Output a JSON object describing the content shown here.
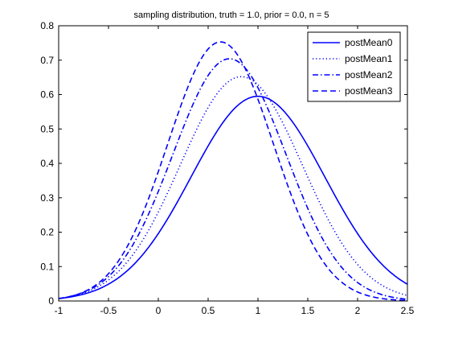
{
  "chart_data": {
    "type": "line",
    "title": "sampling distribution, truth = 1.0, prior = 0.0, n = 5",
    "xlabel": "",
    "ylabel": "",
    "xlim": [
      -1,
      2.5
    ],
    "ylim": [
      0,
      0.8
    ],
    "xticks": [
      "-1",
      "-0.5",
      "0",
      "0.5",
      "1",
      "1.5",
      "2",
      "2.5"
    ],
    "yticks": [
      "0",
      "0.1",
      "0.2",
      "0.3",
      "0.4",
      "0.5",
      "0.6",
      "0.7",
      "0.8"
    ],
    "grid": false,
    "legend_position": "top-right",
    "line_color": "#0000ff",
    "series": [
      {
        "name": "postMean0",
        "style": "solid",
        "mu": 1.0,
        "sigma": 0.6708,
        "peak": 0.595
      },
      {
        "name": "postMean1",
        "style": "dotted",
        "mu": 0.833,
        "sigma": 0.6124,
        "peak": 0.652
      },
      {
        "name": "postMean2",
        "style": "dashdot",
        "mu": 0.714,
        "sigma": 0.5668,
        "peak": 0.704
      },
      {
        "name": "postMean3",
        "style": "dashed",
        "mu": 0.625,
        "sigma": 0.5303,
        "peak": 0.753
      }
    ]
  }
}
